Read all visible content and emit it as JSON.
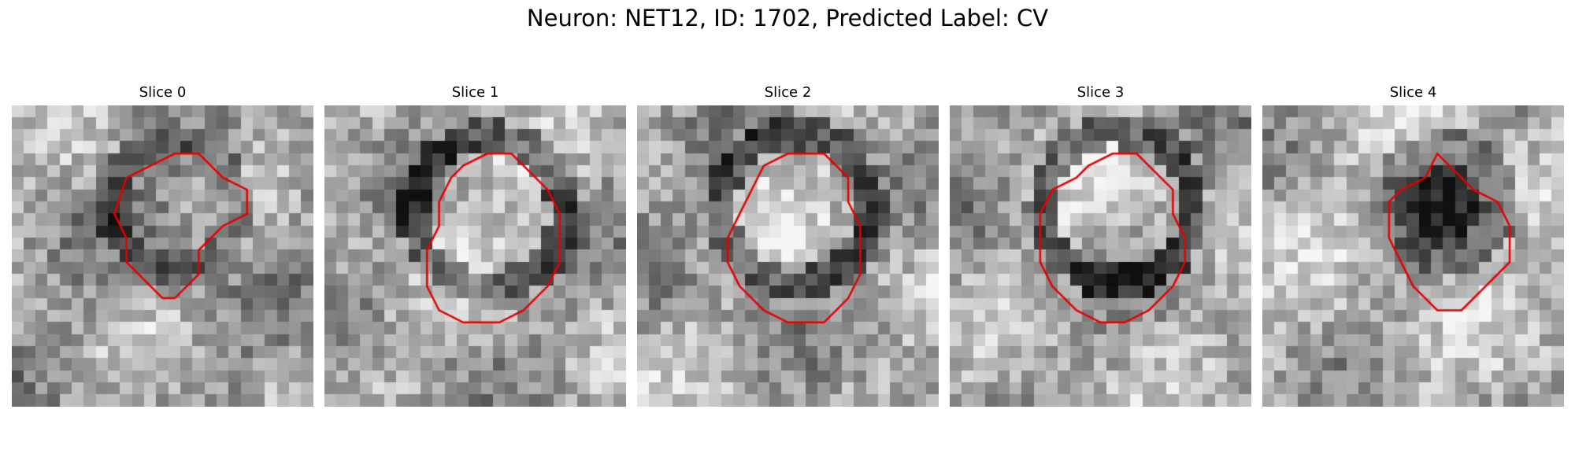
{
  "figure": {
    "title": "Neuron: NET12, ID: 1702, Predicted Label: CV"
  },
  "panels": [
    {
      "title": "Slice 0",
      "contour": [
        [
          10,
          0
        ],
        [
          12,
          0
        ],
        [
          14,
          2
        ],
        [
          16,
          3
        ],
        [
          16,
          5
        ],
        [
          14,
          6
        ],
        [
          12,
          8
        ],
        [
          12,
          10
        ],
        [
          11,
          11
        ],
        [
          10,
          12
        ],
        [
          9,
          12
        ],
        [
          8,
          11
        ],
        [
          7,
          10
        ],
        [
          6,
          9
        ],
        [
          6,
          7
        ],
        [
          5,
          5
        ],
        [
          6,
          2
        ],
        [
          8,
          1
        ]
      ]
    },
    {
      "title": "Slice 1",
      "contour": [
        [
          10,
          0
        ],
        [
          12,
          0
        ],
        [
          14,
          2
        ],
        [
          15,
          3
        ],
        [
          16,
          5
        ],
        [
          16,
          9
        ],
        [
          15,
          11
        ],
        [
          13,
          13
        ],
        [
          11,
          14
        ],
        [
          8,
          14
        ],
        [
          6,
          13
        ],
        [
          5,
          11
        ],
        [
          5,
          8
        ],
        [
          6,
          6
        ],
        [
          6,
          4
        ],
        [
          7,
          2
        ],
        [
          8,
          1
        ]
      ]
    },
    {
      "title": "Slice 2",
      "contour": [
        [
          9,
          0
        ],
        [
          12,
          0
        ],
        [
          13,
          1
        ],
        [
          14,
          2
        ],
        [
          14,
          4
        ],
        [
          15,
          6
        ],
        [
          15,
          10
        ],
        [
          14,
          12
        ],
        [
          12,
          14
        ],
        [
          9,
          14
        ],
        [
          7,
          13
        ],
        [
          5,
          11
        ],
        [
          4,
          9
        ],
        [
          4,
          7
        ],
        [
          5,
          5
        ],
        [
          6,
          3
        ],
        [
          7,
          1
        ]
      ]
    },
    {
      "title": "Slice 3",
      "contour": [
        [
          10,
          0
        ],
        [
          12,
          0
        ],
        [
          13,
          1
        ],
        [
          14,
          2
        ],
        [
          15,
          3
        ],
        [
          15,
          5
        ],
        [
          16,
          7
        ],
        [
          16,
          9
        ],
        [
          15,
          11
        ],
        [
          13,
          13
        ],
        [
          11,
          14
        ],
        [
          9,
          14
        ],
        [
          7,
          13
        ],
        [
          5,
          11
        ],
        [
          4,
          9
        ],
        [
          4,
          5
        ],
        [
          5,
          3
        ],
        [
          7,
          2
        ],
        [
          8,
          1
        ]
      ]
    },
    {
      "title": "Slice 4",
      "contour": [
        [
          11,
          0
        ],
        [
          12,
          1
        ],
        [
          13,
          2
        ],
        [
          14,
          3
        ],
        [
          16,
          4
        ],
        [
          17,
          6
        ],
        [
          17,
          9
        ],
        [
          15,
          11
        ],
        [
          13,
          13
        ],
        [
          11,
          13
        ],
        [
          9,
          11
        ],
        [
          8,
          9
        ],
        [
          7,
          7
        ],
        [
          7,
          4
        ],
        [
          8,
          3
        ],
        [
          10,
          2
        ]
      ]
    }
  ],
  "colors": {
    "contour": "#e60000",
    "background": "#ffffff"
  }
}
